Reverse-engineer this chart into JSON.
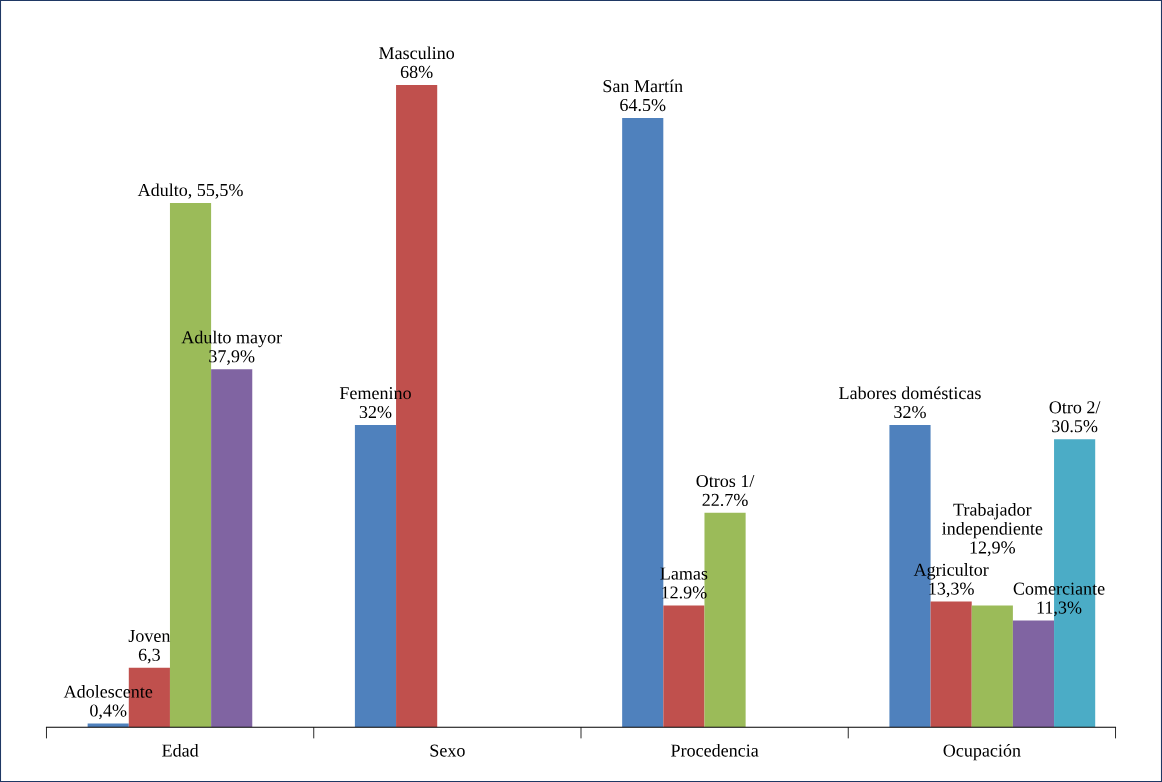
{
  "chart_data": {
    "type": "bar",
    "categories": [
      "Edad",
      "Sexo",
      "Procedencia",
      "Ocupación"
    ],
    "series": [
      {
        "color": "#4f81bd",
        "values": [
          0.4,
          32,
          64.5,
          32
        ],
        "value_labels": [
          "Adolescente\n0,4%",
          "Femenino\n32%",
          "San Martín\n64.5%",
          "Labores domésticas\n32%"
        ]
      },
      {
        "color": "#c0504d",
        "values": [
          6.3,
          68,
          12.9,
          13.3
        ],
        "value_labels": [
          "Joven\n6,3",
          "Masculino\n68%",
          "Lamas\n12.9%",
          "Agricultor\n13,3%"
        ]
      },
      {
        "color": "#9bbb59",
        "values": [
          55.5,
          null,
          22.7,
          12.9
        ],
        "value_labels": [
          "Adulto, 55,5%",
          null,
          "Otros 1/\n22.7%",
          "Trabajador\nindependiente\n12,9%"
        ]
      },
      {
        "color": "#8064a2",
        "values": [
          37.9,
          null,
          null,
          11.3
        ],
        "value_labels": [
          "Adulto mayor\n37,9%",
          null,
          null,
          "Comerciante\n11,3%"
        ]
      },
      {
        "color": "#4bacc6",
        "values": [
          null,
          null,
          null,
          30.5
        ],
        "value_labels": [
          null,
          null,
          null,
          "Otro 2/\n30.5%"
        ]
      }
    ],
    "grid": false,
    "legend": false
  }
}
